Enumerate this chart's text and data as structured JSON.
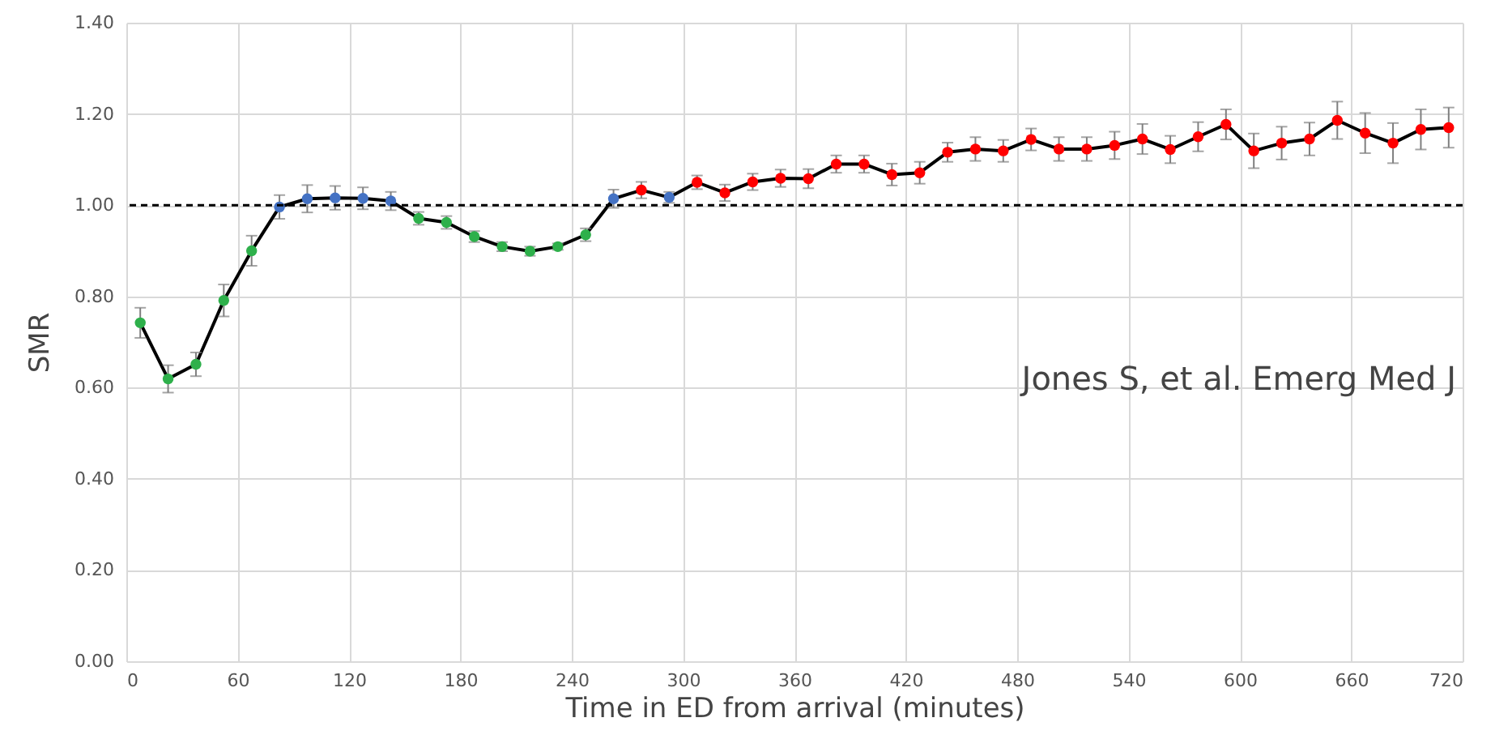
{
  "chart_data": {
    "type": "line",
    "xlabel": "Time in ED from arrival (minutes)",
    "ylabel": "SMR",
    "x": [
      7.5,
      22.5,
      37.5,
      52.5,
      67.5,
      82.5,
      97.5,
      112.5,
      127.5,
      142.5,
      157.5,
      172.5,
      187.5,
      202.5,
      217.5,
      232.5,
      247.5,
      262.5,
      277.5,
      292.5,
      307.5,
      322.5,
      337.5,
      352.5,
      367.5,
      382.5,
      397.5,
      412.5,
      427.5,
      442.5,
      457.5,
      472.5,
      487.5,
      502.5,
      517.5,
      532.5,
      547.5,
      562.5,
      577.5,
      592.5,
      607.5,
      622.5,
      637.5,
      652.5,
      667.5,
      682.5,
      697.5,
      712.5
    ],
    "series": [
      {
        "color": "#000000",
        "colors": [
          "#2eb04b",
          "#2eb04b",
          "#2eb04b",
          "#2eb04b",
          "#2eb04b",
          "#4472c4",
          "#4472c4",
          "#4472c4",
          "#4472c4",
          "#4472c4",
          "#2eb04b",
          "#2eb04b",
          "#2eb04b",
          "#2eb04b",
          "#2eb04b",
          "#2eb04b",
          "#2eb04b",
          "#4472c4",
          "#ff0000",
          "#4472c4",
          "#ff0000",
          "#ff0000",
          "#ff0000",
          "#ff0000",
          "#ff0000",
          "#ff0000",
          "#ff0000",
          "#ff0000",
          "#ff0000",
          "#ff0000",
          "#ff0000",
          "#ff0000",
          "#ff0000",
          "#ff0000",
          "#ff0000",
          "#ff0000",
          "#ff0000",
          "#ff0000",
          "#ff0000",
          "#ff0000",
          "#ff0000",
          "#ff0000",
          "#ff0000",
          "#ff0000",
          "#ff0000",
          "#ff0000",
          "#ff0000",
          "#ff0000"
        ],
        "values": [
          0.742,
          0.619,
          0.651,
          0.791,
          0.9,
          0.996,
          1.014,
          1.016,
          1.015,
          1.009,
          0.971,
          0.962,
          0.931,
          0.909,
          0.899,
          0.909,
          0.935,
          1.014,
          1.033,
          1.017,
          1.05,
          1.027,
          1.051,
          1.059,
          1.058,
          1.09,
          1.09,
          1.067,
          1.071,
          1.116,
          1.123,
          1.119,
          1.144,
          1.123,
          1.123,
          1.131,
          1.145,
          1.122,
          1.15,
          1.177,
          1.119,
          1.136,
          1.145,
          1.186,
          1.158,
          1.136,
          1.166,
          1.17
        ],
        "errors": [
          0.033,
          0.03,
          0.026,
          0.035,
          0.033,
          0.026,
          0.03,
          0.026,
          0.024,
          0.02,
          0.014,
          0.014,
          0.012,
          0.01,
          0.01,
          0.007,
          0.014,
          0.02,
          0.018,
          0.012,
          0.015,
          0.018,
          0.018,
          0.019,
          0.021,
          0.019,
          0.019,
          0.024,
          0.024,
          0.021,
          0.026,
          0.024,
          0.024,
          0.026,
          0.026,
          0.03,
          0.033,
          0.03,
          0.032,
          0.033,
          0.038,
          0.036,
          0.036,
          0.041,
          0.044,
          0.044,
          0.044,
          0.044
        ]
      }
    ],
    "xlim": [
      0,
      720
    ],
    "xticks": [
      0,
      60,
      120,
      180,
      240,
      300,
      360,
      420,
      480,
      540,
      600,
      660,
      720
    ],
    "ylim": [
      0,
      1.4
    ],
    "yticks": [
      {
        "value": 0,
        "label": "0.00"
      },
      {
        "value": 0.2,
        "label": "0.20"
      },
      {
        "value": 0.4,
        "label": "0.40"
      },
      {
        "value": 0.6,
        "label": "0.60"
      },
      {
        "value": 0.8,
        "label": "0.80"
      },
      {
        "value": 1,
        "label": "1.00"
      },
      {
        "value": 1.2,
        "label": "1.20"
      },
      {
        "value": 1.4,
        "label": "1.40"
      }
    ],
    "ref_lines": [
      {
        "axis": "y",
        "value": 1,
        "color": "#000000",
        "line_style": "dashed"
      }
    ],
    "annotations": [
      "Jones S, et al. Emerg Med J"
    ],
    "grid": true,
    "marker": "circle",
    "line_style": "solid"
  }
}
